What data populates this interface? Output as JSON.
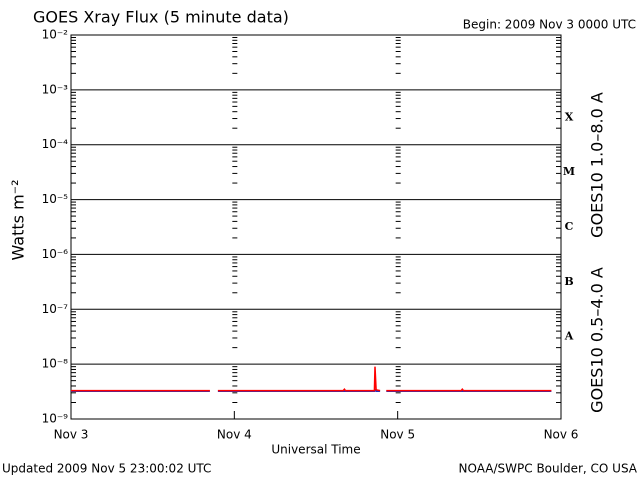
{
  "chart_data": {
    "type": "line",
    "title": "GOES Xray Flux (5 minute data)",
    "subtitle": "Begin:  2009 Nov 3 0000 UTC",
    "xlabel": "Universal Time",
    "ylabel": "Watts m⁻²",
    "footer_left": "Updated 2009 Nov  5 23:00:02 UTC",
    "footer_right": "NOAA/SWPC Boulder, CO USA",
    "annotations": [
      "X",
      "M",
      "C",
      "B",
      "A"
    ],
    "log_y": true,
    "grid": true,
    "xlim": [
      "2009-11-03T00:00",
      "2009-11-06T00:00"
    ],
    "xticks": [
      {
        "value": "2009-11-03T00:00",
        "label": "Nov 3"
      },
      {
        "value": "2009-11-04T00:00",
        "label": "Nov 4"
      },
      {
        "value": "2009-11-05T00:00",
        "label": "Nov 5"
      },
      {
        "value": "2009-11-06T00:00",
        "label": "Nov 6"
      }
    ],
    "ylim": [
      1e-09,
      0.01
    ],
    "yticks": [
      {
        "value": 1e-09,
        "label": "10⁻⁹"
      },
      {
        "value": 1e-08,
        "label": "10⁻⁸"
      },
      {
        "value": 1e-07,
        "label": "10⁻⁷"
      },
      {
        "value": 1e-06,
        "label": "10⁻⁶"
      },
      {
        "value": 1e-05,
        "label": "10⁻⁵"
      },
      {
        "value": 0.0001,
        "label": "10⁻⁴"
      },
      {
        "value": 0.001,
        "label": "10⁻³"
      },
      {
        "value": 0.01,
        "label": "10⁻²"
      }
    ],
    "x": [
      "2009-11-03T00:00",
      "2009-11-03T20:25",
      "2009-11-03T20:30",
      "2009-11-03T21:35",
      "2009-11-04T16:00",
      "2009-11-04T16:10",
      "2009-11-04T16:20",
      "2009-11-04T20:35",
      "2009-11-04T20:40",
      "2009-11-04T20:50",
      "2009-11-04T21:25",
      "2009-11-04T21:30",
      "2009-11-04T22:20",
      "2009-11-05T09:20",
      "2009-11-05T09:30",
      "2009-11-05T09:40",
      "2009-11-05T22:35"
    ],
    "series": [
      {
        "name": "GOES10 1.0–8.0 A",
        "color": "#ff0000",
        "values": [
          3.3e-09,
          3.3e-09,
          null,
          3.3e-09,
          3.3e-09,
          3.5e-09,
          3.3e-09,
          3.3e-09,
          9e-09,
          3.4e-09,
          3.3e-09,
          null,
          3.3e-09,
          3.3e-09,
          3.5e-09,
          3.3e-09,
          3.3e-09
        ]
      },
      {
        "name": "GOES10 0.5–4.0 A",
        "color": "#2030c0",
        "values": [
          3.2e-09,
          3.2e-09,
          null,
          3.2e-09,
          3.2e-09,
          3.2e-09,
          3.2e-09,
          3.2e-09,
          3.4e-09,
          3.2e-09,
          3.2e-09,
          null,
          3.2e-09,
          3.2e-09,
          3.2e-09,
          3.2e-09,
          3.2e-09
        ]
      }
    ]
  }
}
